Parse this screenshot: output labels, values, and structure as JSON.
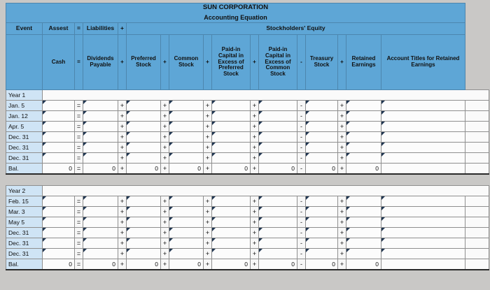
{
  "header": {
    "title": "SUN CORPORATION",
    "subtitle": "Accounting Equation",
    "event": "Event",
    "assets": "Assest",
    "eq": "=",
    "liabilities": "Liabilities",
    "plus": "+",
    "equity": "Stockholders' Equity"
  },
  "columns": [
    "Cash",
    "Dividends Payable",
    "Preferred Stock",
    "Common Stock",
    "Paid-in Capital in Excess of Preferred Stock",
    "Paid-in Capital in Excess of Common Stock",
    "Treasury Stock",
    "Retained Earnings",
    "Account Titles for Retained Earnings"
  ],
  "operators": [
    "=",
    "+",
    "+",
    "+",
    "+",
    "-",
    "+"
  ],
  "sections": [
    {
      "year": "Year 1",
      "rows": [
        {
          "label": "Jan. 5"
        },
        {
          "label": "Jan. 12"
        },
        {
          "label": "Apr. 5"
        },
        {
          "label": "Dec. 31"
        },
        {
          "label": "Dec. 31"
        },
        {
          "label": "Dec. 31"
        }
      ],
      "balance": {
        "label": "Bal.",
        "values": [
          "0",
          "0",
          "0",
          "0",
          "0",
          "0",
          "0",
          "0"
        ],
        "account_title": ""
      }
    },
    {
      "year": "Year 2",
      "rows": [
        {
          "label": "Feb. 15"
        },
        {
          "label": "Mar. 3"
        },
        {
          "label": "May 5"
        },
        {
          "label": "Dec. 31"
        },
        {
          "label": "Dec. 31"
        },
        {
          "label": "Dec. 31"
        }
      ],
      "balance": {
        "label": "Bal.",
        "values": [
          "0",
          "0",
          "0",
          "0",
          "0",
          "0",
          "0",
          "0"
        ],
        "account_title": ""
      }
    }
  ],
  "colors": {
    "header_blue": "#5ea6d6",
    "event_blue": "#cfe4f5",
    "cell_white": "#fcfcfc",
    "marker_navy": "#1f3550",
    "page_gray": "#c9c8c6"
  }
}
